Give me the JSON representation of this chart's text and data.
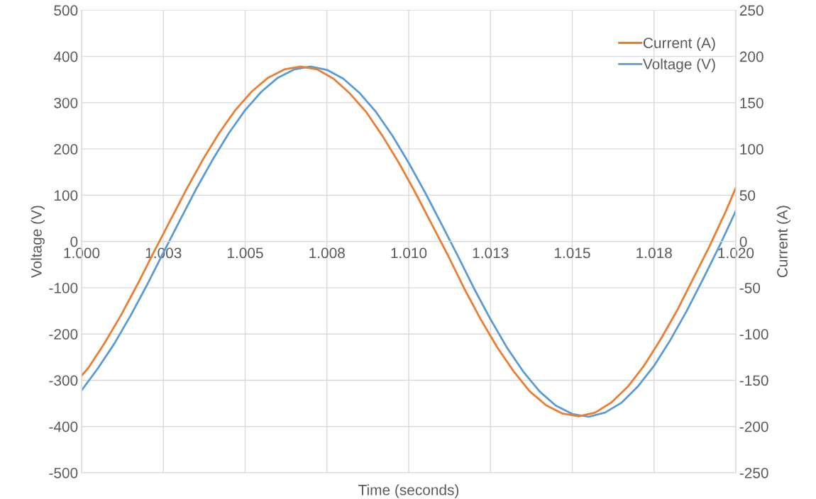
{
  "chart_data": {
    "type": "line",
    "xlabel": "Time (seconds)",
    "ylabel": "Voltage (V)",
    "y2label": "Current (A)",
    "xlim": [
      1.0,
      1.02
    ],
    "xticks": [
      {
        "value": 1.0,
        "label": "1.000"
      },
      {
        "value": 1.0025,
        "label": "1.003"
      },
      {
        "value": 1.005,
        "label": "1.005"
      },
      {
        "value": 1.0075,
        "label": "1.008"
      },
      {
        "value": 1.01,
        "label": "1.010"
      },
      {
        "value": 1.0125,
        "label": "1.013"
      },
      {
        "value": 1.015,
        "label": "1.015"
      },
      {
        "value": 1.0175,
        "label": "1.018"
      },
      {
        "value": 1.02,
        "label": "1.020"
      }
    ],
    "ylim": [
      -500,
      500
    ],
    "yticks": [
      -500,
      -400,
      -300,
      -200,
      -100,
      0,
      100,
      200,
      300,
      400,
      500
    ],
    "y2lim": [
      -250,
      250
    ],
    "y2ticks": [
      -250,
      -200,
      -150,
      -100,
      -50,
      0,
      50,
      100,
      150,
      200,
      250
    ],
    "grid": true,
    "legend": "top right",
    "marker": "none",
    "line_style": "solid",
    "series": [
      {
        "name": "Current (A)",
        "color": "#ed7d31",
        "axis": "y2",
        "x": [
          1.0,
          1.0002,
          1.0007,
          1.0012,
          1.0017,
          1.0022,
          1.0027,
          1.0032,
          1.0037,
          1.0042,
          1.0047,
          1.0052,
          1.0057,
          1.0062,
          1.0067,
          1.0072,
          1.0077,
          1.0082,
          1.0087,
          1.0092,
          1.0097,
          1.0102,
          1.0107,
          1.0112,
          1.0117,
          1.0122,
          1.0127,
          1.0132,
          1.0137,
          1.0142,
          1.0147,
          1.0152,
          1.0157,
          1.0162,
          1.0167,
          1.0172,
          1.0177,
          1.0182,
          1.0187,
          1.0192,
          1.0197,
          1.02
        ],
        "values": [
          -145,
          -137,
          -110,
          -80,
          -47,
          -12,
          22,
          56,
          88,
          117,
          142,
          162,
          177,
          186,
          189,
          186,
          176,
          160,
          140,
          114,
          85,
          53,
          19,
          -15,
          -51,
          -84,
          -114,
          -140,
          -162,
          -177,
          -186,
          -189,
          -185,
          -174,
          -157,
          -134,
          -106,
          -75,
          -40,
          -5,
          33,
          58
        ]
      },
      {
        "name": "Voltage (V)",
        "color": "#5b9bd5",
        "x": [
          1.0,
          1.0005,
          1.001,
          1.0015,
          1.002,
          1.0025,
          1.003,
          1.0035,
          1.004,
          1.0045,
          1.005,
          1.0055,
          1.006,
          1.0065,
          1.007,
          1.0075,
          1.008,
          1.0085,
          1.009,
          1.0095,
          1.01,
          1.0105,
          1.011,
          1.0115,
          1.012,
          1.0125,
          1.013,
          1.0135,
          1.014,
          1.0145,
          1.015,
          1.0155,
          1.016,
          1.0165,
          1.017,
          1.0175,
          1.018,
          1.0185,
          1.019,
          1.0195,
          1.02
        ],
        "values": [
          -322,
          -274,
          -221,
          -160,
          -94,
          -24,
          45,
          113,
          176,
          234,
          284,
          324,
          354,
          372,
          378,
          371,
          352,
          321,
          280,
          229,
          170,
          106,
          38,
          -31,
          -102,
          -168,
          -229,
          -281,
          -324,
          -355,
          -373,
          -379,
          -370,
          -349,
          -314,
          -269,
          -213,
          -150,
          -81,
          -10,
          66
        ]
      }
    ]
  }
}
